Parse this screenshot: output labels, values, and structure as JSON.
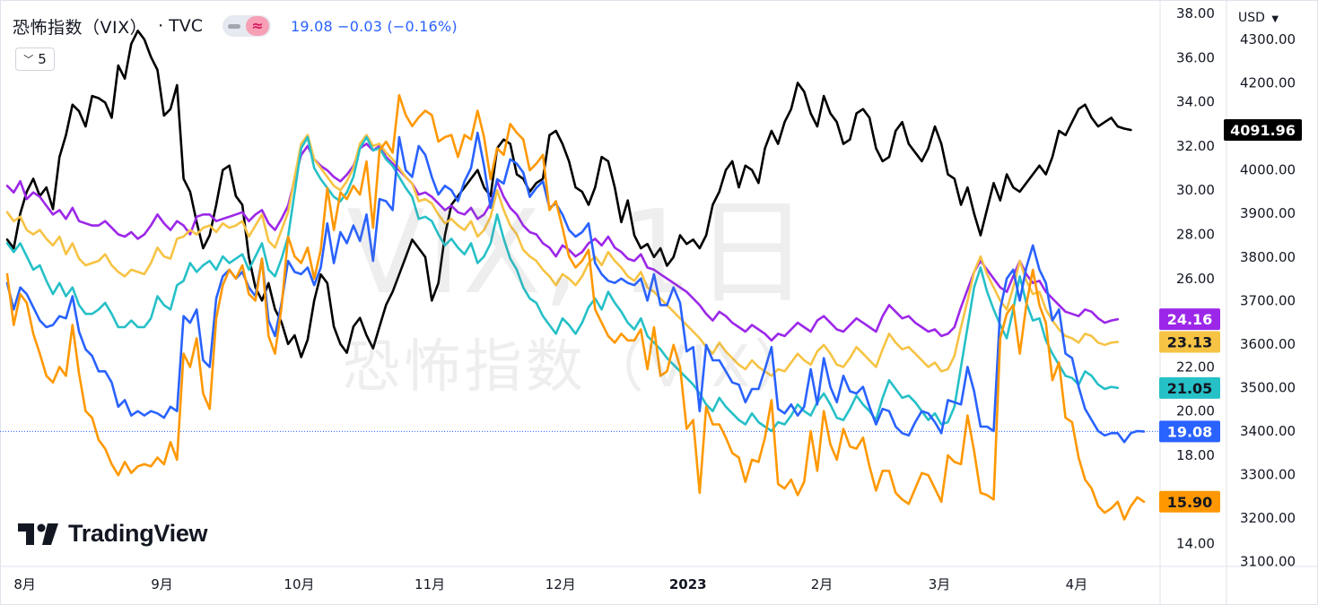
{
  "header": {
    "title": "恐怖指数（VIX）",
    "separator": "·",
    "source": "TVC",
    "quote": "19.08 −0.03 (−0.16%)"
  },
  "count_button": {
    "value": "5"
  },
  "currency": "USD",
  "watermark": {
    "main": "VIX, 1日",
    "sub": "恐怖指数（VIX）"
  },
  "logo": {
    "text": "TradingView"
  },
  "colors": {
    "black": "#000000",
    "purple": "#9c27e8",
    "yellow": "#f6c344",
    "teal": "#26c0c7",
    "blue": "#2962ff",
    "orange": "#ff9800"
  },
  "chart_data": {
    "type": "line",
    "x_labels": [
      "8月",
      "9月",
      "10月",
      "11月",
      "12月",
      "2023",
      "2月",
      "3月",
      "4月"
    ],
    "x_label_positions": [
      0.5,
      21.5,
      42.5,
      62.5,
      82.5,
      102,
      122.5,
      140.5,
      161.5
    ],
    "x_count": 168,
    "right_axis": {
      "ticks": [
        "38.00",
        "36.00",
        "34.00",
        "32.00",
        "30.00",
        "28.00",
        "26.00",
        "22.00",
        "20.00",
        "18.00",
        "14.00"
      ],
      "tick_values": [
        38,
        36,
        34,
        32,
        30,
        28,
        26,
        22,
        20,
        18,
        14
      ]
    },
    "left_axis": {
      "ticks": [
        "4300.00",
        "4200.00",
        "4100.00",
        "4000.00",
        "3900.00",
        "3800.00",
        "3700.00",
        "3600.00",
        "3500.00",
        "3400.00",
        "3300.00",
        "3200.00",
        "3100.00"
      ],
      "tick_values": [
        4300,
        4200,
        4100,
        4000,
        3900,
        3800,
        3700,
        3600,
        3500,
        3400,
        3300,
        3200,
        3100
      ]
    },
    "last_value_labels": [
      {
        "text": "4091.96",
        "value": 4091.96,
        "axis": "left",
        "color": "#000000"
      },
      {
        "text": "24.16",
        "value": 24.16,
        "axis": "right",
        "color": "#9c27e8"
      },
      {
        "text": "23.13",
        "value": 23.13,
        "axis": "right",
        "color": "#f6c344"
      },
      {
        "text": "21.05",
        "value": 21.05,
        "axis": "right",
        "color": "#26c0c7"
      },
      {
        "text": "19.08",
        "value": 19.08,
        "axis": "right",
        "color": "#2962ff"
      },
      {
        "text": "15.90",
        "value": 15.9,
        "axis": "right",
        "color": "#ff9800"
      }
    ],
    "current_price_line": 19.08,
    "series": [
      {
        "axis": "left",
        "color": "#000000",
        "values": [
          3840,
          3820,
          3900,
          3950,
          3980,
          3940,
          3960,
          3910,
          4030,
          4080,
          4150,
          4135,
          4100,
          4170,
          4165,
          4155,
          4120,
          4240,
          4210,
          4290,
          4320,
          4300,
          4260,
          4230,
          4125,
          4140,
          4195,
          3980,
          3950,
          3880,
          3820,
          3850,
          3920,
          4000,
          4010,
          3940,
          3920,
          3800,
          3730,
          3700,
          3740,
          3680,
          3650,
          3600,
          3620,
          3570,
          3610,
          3700,
          3760,
          3740,
          3640,
          3600,
          3580,
          3640,
          3660,
          3620,
          3590,
          3640,
          3690,
          3720,
          3760,
          3800,
          3840,
          3820,
          3800,
          3700,
          3740,
          3850,
          3920,
          3940,
          3960,
          3980,
          4000,
          3960,
          3940,
          4050,
          4070,
          4060,
          3990,
          3980,
          3950,
          3970,
          3980,
          4080,
          4090,
          4060,
          4020,
          3960,
          3950,
          3920,
          3960,
          4030,
          4020,
          3960,
          3880,
          3930,
          3850,
          3820,
          3830,
          3800,
          3820,
          3780,
          3800,
          3850,
          3830,
          3840,
          3820,
          3850,
          3920,
          3950,
          4000,
          4020,
          3960,
          4010,
          4000,
          3970,
          4050,
          4090,
          4060,
          4110,
          4140,
          4200,
          4180,
          4130,
          4100,
          4170,
          4130,
          4110,
          4060,
          4070,
          4130,
          4140,
          4120,
          4050,
          4020,
          4030,
          4090,
          4110,
          4060,
          4040,
          4020,
          4050,
          4100,
          4060,
          3990,
          3980,
          3920,
          3960,
          3900,
          3850,
          3910,
          3970,
          3930,
          3990,
          3960,
          3950,
          3970,
          3990,
          4010,
          3990,
          4030,
          4090,
          4080,
          4110,
          4140,
          4150,
          4120,
          4100,
          4110,
          4120,
          4100,
          4095,
          4091.96
        ]
      },
      {
        "axis": "right",
        "color": "#9c27e8",
        "values": [
          30.2,
          29.9,
          30.4,
          29.6,
          29.9,
          29.7,
          29.3,
          28.9,
          29.1,
          28.7,
          29.2,
          28.6,
          28.5,
          28.4,
          28.4,
          28.6,
          28.3,
          28.0,
          27.9,
          28.1,
          27.8,
          28.0,
          28.4,
          28.9,
          28.5,
          28.2,
          28.6,
          28.4,
          28.0,
          28.8,
          28.9,
          28.9,
          28.6,
          28.7,
          28.8,
          28.9,
          29.0,
          28.6,
          28.9,
          29.1,
          28.5,
          28.2,
          28.7,
          29.3,
          30.5,
          31.6,
          32.0,
          31.4,
          31.1,
          30.9,
          30.6,
          30.4,
          30.7,
          31.1,
          31.9,
          32.1,
          31.8,
          32.0,
          31.5,
          31.2,
          30.9,
          30.6,
          30.3,
          29.8,
          29.9,
          29.7,
          29.4,
          29.1,
          29.3,
          29.0,
          28.9,
          29.2,
          28.7,
          28.9,
          29.4,
          30.4,
          29.7,
          29.2,
          28.9,
          28.4,
          28.1,
          28.0,
          27.6,
          27.4,
          27.0,
          27.5,
          27.3,
          27.0,
          27.2,
          27.6,
          27.8,
          27.5,
          27.9,
          27.4,
          27.2,
          26.9,
          26.8,
          27.1,
          26.5,
          26.4,
          26.2,
          26.0,
          25.8,
          25.6,
          25.4,
          25.1,
          24.8,
          24.4,
          24.1,
          24.5,
          24.3,
          24.0,
          23.8,
          23.6,
          23.9,
          23.7,
          23.5,
          23.2,
          23.5,
          23.4,
          23.7,
          24.0,
          23.8,
          23.6,
          24.1,
          24.3,
          24.0,
          23.7,
          23.6,
          23.9,
          24.2,
          24.0,
          23.8,
          23.6,
          24.3,
          24.8,
          24.5,
          24.2,
          24.3,
          24.0,
          23.8,
          23.6,
          23.7,
          23.4,
          23.5,
          23.8,
          24.7,
          25.5,
          26.3,
          26.8,
          26.4,
          26.0,
          25.6,
          25.4,
          26.1,
          26.8,
          26.2,
          25.8,
          25.9,
          25.4,
          25.1,
          24.8,
          24.5,
          24.4,
          24.3,
          24.6,
          24.5,
          24.2,
          24.0,
          24.1,
          24.16
        ]
      },
      {
        "axis": "right",
        "color": "#f6c344",
        "values": [
          29.0,
          28.6,
          28.8,
          28.2,
          28.0,
          28.2,
          27.8,
          27.5,
          27.9,
          27.1,
          27.6,
          26.9,
          26.6,
          26.7,
          26.8,
          27.1,
          26.6,
          26.3,
          26.1,
          26.4,
          26.3,
          26.2,
          26.7,
          27.4,
          27.0,
          26.9,
          27.8,
          27.9,
          28.2,
          28.0,
          28.3,
          28.4,
          28.1,
          28.5,
          28.3,
          28.4,
          28.6,
          27.9,
          28.4,
          28.9,
          27.7,
          27.4,
          28.2,
          29.0,
          30.6,
          32.1,
          32.5,
          31.4,
          31.0,
          30.6,
          30.2,
          30.0,
          30.4,
          31.0,
          32.1,
          32.5,
          32.0,
          32.1,
          31.7,
          31.4,
          31.0,
          30.6,
          30.3,
          29.5,
          29.6,
          29.4,
          28.9,
          28.5,
          28.7,
          28.4,
          28.2,
          28.6,
          27.9,
          28.2,
          28.8,
          30.0,
          29.1,
          28.4,
          28.0,
          27.3,
          27.0,
          26.8,
          26.4,
          26.1,
          25.7,
          26.2,
          26.0,
          25.7,
          26.1,
          26.7,
          27.0,
          26.6,
          27.2,
          26.8,
          26.5,
          26.1,
          25.9,
          26.3,
          25.6,
          25.4,
          25.1,
          24.8,
          24.5,
          24.2,
          23.9,
          23.6,
          23.3,
          22.9,
          22.6,
          23.1,
          22.7,
          22.4,
          22.1,
          21.9,
          22.3,
          22.0,
          21.8,
          21.6,
          21.9,
          21.8,
          22.2,
          22.6,
          22.3,
          22.1,
          22.7,
          23.0,
          22.6,
          22.1,
          22.0,
          22.4,
          22.9,
          22.6,
          22.3,
          22.0,
          22.8,
          23.5,
          23.1,
          22.8,
          22.9,
          22.6,
          22.3,
          22.0,
          22.2,
          21.8,
          21.9,
          22.5,
          23.8,
          25.0,
          26.3,
          27.0,
          26.2,
          25.6,
          25.0,
          24.6,
          25.6,
          26.8,
          25.9,
          25.3,
          25.4,
          24.6,
          24.1,
          23.7,
          23.4,
          23.3,
          23.1,
          23.5,
          23.4,
          23.1,
          23.0,
          23.1,
          23.13
        ]
      },
      {
        "axis": "right",
        "color": "#26c0c7",
        "values": [
          27.6,
          27.2,
          27.6,
          27.0,
          26.4,
          26.6,
          25.9,
          25.3,
          25.8,
          25.2,
          25.6,
          24.8,
          24.4,
          24.4,
          24.6,
          24.9,
          24.4,
          23.8,
          23.8,
          24.1,
          23.8,
          23.8,
          24.2,
          25.2,
          24.8,
          24.6,
          25.7,
          25.9,
          26.7,
          26.3,
          26.6,
          26.8,
          26.4,
          27.0,
          26.7,
          26.9,
          27.1,
          26.4,
          27.0,
          27.6,
          26.4,
          26.1,
          26.9,
          27.9,
          29.9,
          31.9,
          32.4,
          31.0,
          30.5,
          30.1,
          29.7,
          29.5,
          29.9,
          30.6,
          31.9,
          32.4,
          31.8,
          31.9,
          31.4,
          31.1,
          30.6,
          30.1,
          29.7,
          28.7,
          28.8,
          28.6,
          28.0,
          27.5,
          27.8,
          27.4,
          27.1,
          27.6,
          26.7,
          27.0,
          27.6,
          28.9,
          27.8,
          26.9,
          26.4,
          25.6,
          25.1,
          24.9,
          24.3,
          23.9,
          23.5,
          24.2,
          23.9,
          23.5,
          24.0,
          24.7,
          25.1,
          24.6,
          25.4,
          24.9,
          24.5,
          24.0,
          23.7,
          24.2,
          23.4,
          23.1,
          22.8,
          22.4,
          22.1,
          21.8,
          21.5,
          21.2,
          20.8,
          20.3,
          20.0,
          20.6,
          20.2,
          19.9,
          19.6,
          19.4,
          19.9,
          19.5,
          19.3,
          19.1,
          19.5,
          19.4,
          19.8,
          20.3,
          20.0,
          19.8,
          20.4,
          20.8,
          20.3,
          19.7,
          19.6,
          20.1,
          20.7,
          20.3,
          20.0,
          19.6,
          20.6,
          21.4,
          21.0,
          20.6,
          20.7,
          20.4,
          20.0,
          19.6,
          19.9,
          19.4,
          19.5,
          20.2,
          22.0,
          23.8,
          25.6,
          26.5,
          25.4,
          24.6,
          23.9,
          23.3,
          24.6,
          26.1,
          24.9,
          24.1,
          24.2,
          23.2,
          22.6,
          22.1,
          21.6,
          21.5,
          21.2,
          21.8,
          21.6,
          21.2,
          21.0,
          21.1,
          21.05
        ]
      },
      {
        "axis": "right",
        "color": "#2962ff",
        "values": [
          25.8,
          24.6,
          25.6,
          25.3,
          24.7,
          24.1,
          23.8,
          23.9,
          24.3,
          24.2,
          25.2,
          23.6,
          22.8,
          22.5,
          21.8,
          21.8,
          21.3,
          20.2,
          20.5,
          19.8,
          20.0,
          19.8,
          20.0,
          19.9,
          19.7,
          20.2,
          20.0,
          24.3,
          24.0,
          24.6,
          22.3,
          22.0,
          25.1,
          26.1,
          26.4,
          26.0,
          26.3,
          25.6,
          25.2,
          26.9,
          24.1,
          23.4,
          24.9,
          26.8,
          26.3,
          26.2,
          26.5,
          25.7,
          26.5,
          28.5,
          26.7,
          28.1,
          27.6,
          28.4,
          27.7,
          28.9,
          26.8,
          29.6,
          29.5,
          29.1,
          32.4,
          30.9,
          30.6,
          32.0,
          31.6,
          30.6,
          29.8,
          30.2,
          30.0,
          29.5,
          30.4,
          31.0,
          32.6,
          31.1,
          29.2,
          30.5,
          30.3,
          31.4,
          31.2,
          30.8,
          29.7,
          30.1,
          30.4,
          29.2,
          29.4,
          28.9,
          28.2,
          27.9,
          28.1,
          28.5,
          26.7,
          26.2,
          25.9,
          25.8,
          26.0,
          25.8,
          25.7,
          26.0,
          25.0,
          26.2,
          24.8,
          24.8,
          25.6,
          24.9,
          22.7,
          22.9,
          20.0,
          23.0,
          22.3,
          22.3,
          21.8,
          21.3,
          21.2,
          20.4,
          21.0,
          21.0,
          21.9,
          22.9,
          20.1,
          19.9,
          20.3,
          19.8,
          20.2,
          21.9,
          20.3,
          22.4,
          21.1,
          20.4,
          21.6,
          20.9,
          20.8,
          21.1,
          20.2,
          19.4,
          20.1,
          20.0,
          19.3,
          19.0,
          18.9,
          19.5,
          20.0,
          19.9,
          19.5,
          19.0,
          20.5,
          20.4,
          20.3,
          22.0,
          20.9,
          19.3,
          19.3,
          19.1,
          24.6,
          26.0,
          26.4,
          25.0,
          26.5,
          27.5,
          26.4,
          25.8,
          24.1,
          24.6,
          22.6,
          22.4,
          21.1,
          20.1,
          19.6,
          19.1,
          18.9,
          19.0,
          19.0,
          18.6,
          19.0,
          19.1,
          19.08
        ]
      },
      {
        "axis": "right",
        "color": "#ff9800",
        "values": [
          26.2,
          23.9,
          25.3,
          24.9,
          23.5,
          22.6,
          21.6,
          21.3,
          22.0,
          21.6,
          23.9,
          21.7,
          20.0,
          19.7,
          18.7,
          18.3,
          17.6,
          17.1,
          17.7,
          17.2,
          17.5,
          17.6,
          17.5,
          17.9,
          17.6,
          18.6,
          17.8,
          22.6,
          22.0,
          23.3,
          20.8,
          20.1,
          24.2,
          25.7,
          26.4,
          26.0,
          26.6,
          25.3,
          25.0,
          26.9,
          23.4,
          22.6,
          24.7,
          27.9,
          27.0,
          26.7,
          27.4,
          26.0,
          27.3,
          30.1,
          28.2,
          29.9,
          29.6,
          30.2,
          29.8,
          31.3,
          28.3,
          31.8,
          32.2,
          31.7,
          34.3,
          33.4,
          32.9,
          33.3,
          33.6,
          33.4,
          32.2,
          32.4,
          32.5,
          31.5,
          32.5,
          32.3,
          33.6,
          32.4,
          30.5,
          31.9,
          31.6,
          33.0,
          32.6,
          32.3,
          30.9,
          31.2,
          31.6,
          29.1,
          29.5,
          28.3,
          27.0,
          26.5,
          26.8,
          27.3,
          24.6,
          24.0,
          23.4,
          23.1,
          23.5,
          23.2,
          23.2,
          23.7,
          21.9,
          23.8,
          21.6,
          21.8,
          23.0,
          22.0,
          19.2,
          19.6,
          16.3,
          20.2,
          19.4,
          19.4,
          18.8,
          18.1,
          17.9,
          16.8,
          17.8,
          17.7,
          18.8,
          20.5,
          16.7,
          16.5,
          16.9,
          16.2,
          16.8,
          19.1,
          17.3,
          20.0,
          18.5,
          17.8,
          19.2,
          18.4,
          18.3,
          18.8,
          17.5,
          16.4,
          17.3,
          17.3,
          16.3,
          16.0,
          15.8,
          16.5,
          17.2,
          17.1,
          16.5,
          15.9,
          18.0,
          17.7,
          17.6,
          19.8,
          18.2,
          16.3,
          16.2,
          16.0,
          23.3,
          24.4,
          24.8,
          22.6,
          24.8,
          26.4,
          24.8,
          24.0,
          21.4,
          22.2,
          19.7,
          19.5,
          17.9,
          16.9,
          16.5,
          15.7,
          15.4,
          15.6,
          15.9,
          15.1,
          15.7,
          16.1,
          15.9
        ]
      }
    ]
  }
}
